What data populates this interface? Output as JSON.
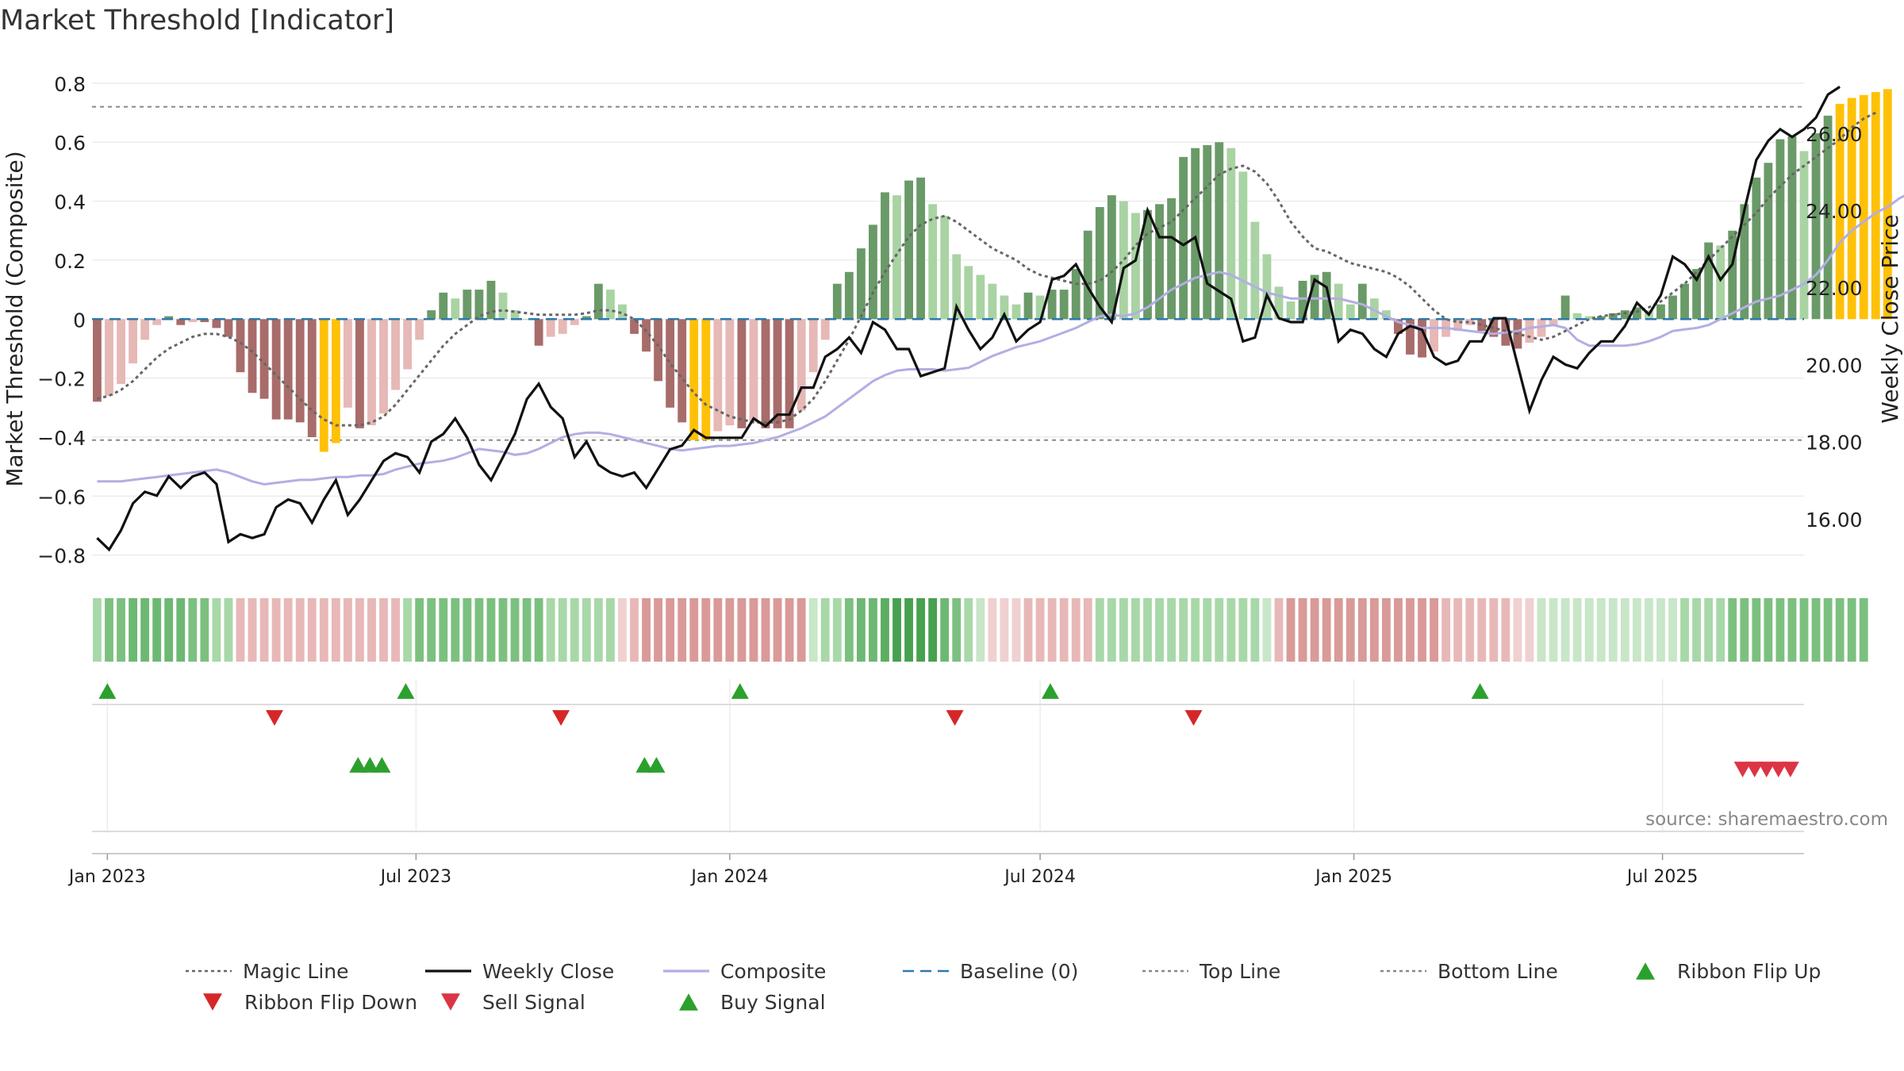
{
  "chart_data": {
    "title": "Market Threshold [Indicator]",
    "type": "bar+line",
    "y_left_label": "Market Threshold (Composite)",
    "y_right_label": "Weekly Close Price",
    "y_left_range": [
      -0.86,
      0.84
    ],
    "y_right_range": [
      14.6,
      27.6
    ],
    "y_left_ticks": [
      "0.8",
      "0.6",
      "0.4",
      "0.2",
      "0",
      "−0.2",
      "−0.4",
      "−0.6",
      "−0.8"
    ],
    "y_left_tick_values": [
      0.8,
      0.6,
      0.4,
      0.2,
      0,
      -0.2,
      -0.4,
      -0.6,
      -0.8
    ],
    "y_right_ticks": [
      "26.00",
      "24.00",
      "22.00",
      "20.00",
      "18.00",
      "16.00"
    ],
    "y_right_tick_values": [
      26,
      24,
      22,
      20,
      18,
      16
    ],
    "x_range": [
      "2022-12-23",
      "2025-09-22"
    ],
    "x_ticks": [
      {
        "label": "Jan 2023",
        "date": "2023-01-01"
      },
      {
        "label": "Jul 2023",
        "date": "2023-07-01"
      },
      {
        "label": "Jan 2024",
        "date": "2024-01-01"
      },
      {
        "label": "Jul 2024",
        "date": "2024-07-01"
      },
      {
        "label": "Jan 2025",
        "date": "2025-01-01"
      },
      {
        "label": "Jul 2025",
        "date": "2025-07-01"
      }
    ],
    "top_line": 0.72,
    "bottom_line": -0.41,
    "baseline": 0,
    "start_date": "2022-12-26",
    "week_step_days": 7,
    "composite_bars": [
      -0.28,
      -0.26,
      -0.22,
      -0.15,
      -0.07,
      -0.02,
      0.01,
      -0.02,
      -0.01,
      -0.01,
      -0.03,
      -0.06,
      -0.18,
      -0.25,
      -0.27,
      -0.34,
      -0.34,
      -0.35,
      -0.4,
      -0.45,
      -0.42,
      -0.3,
      -0.37,
      -0.36,
      -0.32,
      -0.24,
      -0.17,
      -0.07,
      0.03,
      0.09,
      0.07,
      0.1,
      0.1,
      0.13,
      0.09,
      0.03,
      0.0,
      -0.09,
      -0.06,
      -0.05,
      -0.02,
      0.01,
      0.12,
      0.1,
      0.05,
      -0.05,
      -0.11,
      -0.21,
      -0.3,
      -0.35,
      -0.41,
      -0.41,
      -0.38,
      -0.36,
      -0.37,
      -0.35,
      -0.37,
      -0.37,
      -0.37,
      -0.31,
      -0.18,
      -0.07,
      0.12,
      0.16,
      0.24,
      0.32,
      0.43,
      0.42,
      0.47,
      0.48,
      0.39,
      0.35,
      0.22,
      0.18,
      0.15,
      0.12,
      0.08,
      0.05,
      0.09,
      0.08,
      0.1,
      0.1,
      0.17,
      0.3,
      0.38,
      0.42,
      0.4,
      0.36,
      0.37,
      0.39,
      0.41,
      0.55,
      0.58,
      0.59,
      0.6,
      0.58,
      0.5,
      0.33,
      0.22,
      0.11,
      0.06,
      0.13,
      0.15,
      0.16,
      0.12,
      0.05,
      0.12,
      0.07,
      0.03,
      -0.05,
      -0.12,
      -0.13,
      -0.11,
      -0.06,
      -0.04,
      -0.02,
      -0.04,
      -0.06,
      -0.09,
      -0.1,
      -0.08,
      -0.06,
      -0.02,
      0.08,
      0.02,
      0.01,
      0.01,
      0.02,
      0.03,
      0.04,
      0.03,
      0.05,
      0.08,
      0.12,
      0.17,
      0.26,
      0.25,
      0.3,
      0.39,
      0.48,
      0.53,
      0.61,
      0.62,
      0.57,
      0.63,
      0.69,
      0.73,
      0.75,
      0.76,
      0.77,
      0.78
    ],
    "weekly_close": [
      15.5,
      15.2,
      15.7,
      16.4,
      16.7,
      16.6,
      17.1,
      16.8,
      17.1,
      17.2,
      16.9,
      15.4,
      15.6,
      15.5,
      15.6,
      16.3,
      16.5,
      16.4,
      15.9,
      16.5,
      17.0,
      16.1,
      16.5,
      17.0,
      17.5,
      17.7,
      17.6,
      17.2,
      18.0,
      18.2,
      18.6,
      18.1,
      17.4,
      17.0,
      17.6,
      18.2,
      19.1,
      19.5,
      18.9,
      18.6,
      17.6,
      18.0,
      17.4,
      17.2,
      17.1,
      17.2,
      16.8,
      17.3,
      17.8,
      17.9,
      18.3,
      18.1,
      18.1,
      18.1,
      18.1,
      18.6,
      18.4,
      18.7,
      18.7,
      19.4,
      19.4,
      20.2,
      20.4,
      20.7,
      20.3,
      21.1,
      20.9,
      20.4,
      20.4,
      19.7,
      19.8,
      19.9,
      21.5,
      20.9,
      20.4,
      20.7,
      21.3,
      20.6,
      20.9,
      21.1,
      22.2,
      22.3,
      22.6,
      22.0,
      21.5,
      21.1,
      22.5,
      22.7,
      24.0,
      23.3,
      23.3,
      23.1,
      23.3,
      22.1,
      21.9,
      21.7,
      20.6,
      20.7,
      21.8,
      21.2,
      21.1,
      21.1,
      22.2,
      22.0,
      20.6,
      20.9,
      20.8,
      20.4,
      20.2,
      20.8,
      21.0,
      20.9,
      20.2,
      20.0,
      20.1,
      20.6,
      20.6,
      21.2,
      21.2,
      20.0,
      18.8,
      19.6,
      20.2,
      20.0,
      19.9,
      20.3,
      20.6,
      20.6,
      21.0,
      21.6,
      21.3,
      21.8,
      22.8,
      22.6,
      22.2,
      22.8,
      22.2,
      22.6,
      24.0,
      25.3,
      25.8,
      26.1,
      25.9,
      26.1,
      26.4,
      27.0,
      27.2
    ],
    "composite_line": [
      -0.55,
      -0.55,
      -0.55,
      -0.545,
      -0.54,
      -0.535,
      -0.53,
      -0.525,
      -0.52,
      -0.515,
      -0.51,
      -0.52,
      -0.535,
      -0.55,
      -0.56,
      -0.555,
      -0.55,
      -0.545,
      -0.545,
      -0.54,
      -0.535,
      -0.535,
      -0.53,
      -0.53,
      -0.525,
      -0.51,
      -0.5,
      -0.49,
      -0.485,
      -0.48,
      -0.47,
      -0.455,
      -0.44,
      -0.445,
      -0.45,
      -0.46,
      -0.455,
      -0.44,
      -0.42,
      -0.4,
      -0.39,
      -0.385,
      -0.385,
      -0.39,
      -0.4,
      -0.41,
      -0.42,
      -0.43,
      -0.44,
      -0.445,
      -0.44,
      -0.435,
      -0.43,
      -0.43,
      -0.425,
      -0.42,
      -0.41,
      -0.4,
      -0.385,
      -0.37,
      -0.35,
      -0.33,
      -0.3,
      -0.27,
      -0.24,
      -0.21,
      -0.19,
      -0.175,
      -0.17,
      -0.17,
      -0.17,
      -0.175,
      -0.17,
      -0.165,
      -0.145,
      -0.125,
      -0.11,
      -0.095,
      -0.085,
      -0.075,
      -0.06,
      -0.045,
      -0.03,
      -0.01,
      0.01,
      0.015,
      0.01,
      0.02,
      0.04,
      0.07,
      0.1,
      0.12,
      0.14,
      0.15,
      0.16,
      0.15,
      0.13,
      0.11,
      0.09,
      0.08,
      0.07,
      0.07,
      0.07,
      0.07,
      0.07,
      0.06,
      0.05,
      0.03,
      0.01,
      -0.01,
      -0.02,
      -0.03,
      -0.03,
      -0.03,
      -0.035,
      -0.04,
      -0.045,
      -0.05,
      -0.045,
      -0.04,
      -0.03,
      -0.025,
      -0.02,
      -0.03,
      -0.07,
      -0.09,
      -0.09,
      -0.09,
      -0.09,
      -0.085,
      -0.075,
      -0.06,
      -0.04,
      -0.035,
      -0.03,
      -0.02,
      0.0,
      0.02,
      0.04,
      0.06,
      0.07,
      0.08,
      0.1,
      0.12,
      0.15,
      0.2,
      0.26,
      0.3,
      0.33,
      0.36,
      0.38,
      0.41,
      0.43
    ],
    "magic_line": [
      -0.27,
      -0.26,
      -0.24,
      -0.21,
      -0.17,
      -0.13,
      -0.1,
      -0.08,
      -0.06,
      -0.05,
      -0.05,
      -0.06,
      -0.08,
      -0.11,
      -0.15,
      -0.19,
      -0.23,
      -0.27,
      -0.31,
      -0.34,
      -0.36,
      -0.36,
      -0.36,
      -0.35,
      -0.33,
      -0.29,
      -0.24,
      -0.19,
      -0.14,
      -0.09,
      -0.05,
      -0.02,
      0.01,
      0.025,
      0.03,
      0.025,
      0.02,
      0.015,
      0.015,
      0.015,
      0.015,
      0.02,
      0.03,
      0.03,
      0.02,
      0.0,
      -0.04,
      -0.09,
      -0.15,
      -0.2,
      -0.25,
      -0.29,
      -0.31,
      -0.33,
      -0.34,
      -0.35,
      -0.35,
      -0.35,
      -0.34,
      -0.31,
      -0.27,
      -0.21,
      -0.14,
      -0.07,
      0.01,
      0.09,
      0.16,
      0.22,
      0.28,
      0.32,
      0.34,
      0.35,
      0.33,
      0.3,
      0.27,
      0.24,
      0.22,
      0.2,
      0.17,
      0.15,
      0.14,
      0.13,
      0.12,
      0.12,
      0.13,
      0.16,
      0.2,
      0.25,
      0.29,
      0.31,
      0.33,
      0.37,
      0.41,
      0.45,
      0.49,
      0.51,
      0.52,
      0.5,
      0.46,
      0.4,
      0.33,
      0.28,
      0.24,
      0.23,
      0.21,
      0.19,
      0.18,
      0.17,
      0.16,
      0.14,
      0.11,
      0.07,
      0.03,
      0.0,
      -0.01,
      -0.01,
      -0.02,
      -0.03,
      -0.04,
      -0.05,
      -0.06,
      -0.07,
      -0.06,
      -0.04,
      -0.02,
      0.0,
      0.01,
      0.015,
      0.02,
      0.025,
      0.04,
      0.06,
      0.09,
      0.12,
      0.16,
      0.2,
      0.24,
      0.28,
      0.32,
      0.36,
      0.41,
      0.45,
      0.49,
      0.52,
      0.55,
      0.58,
      0.61,
      0.65,
      0.68,
      0.7
    ],
    "bar_colors": {
      "pos_strong": "#6a9a68",
      "pos_weak": "#a9d3a3",
      "neg_strong": "#a86c6a",
      "neg_weak": "#e6b8b6",
      "extreme": "#ffc107"
    },
    "ribbon_colors": [
      "#a8d8a8",
      "#7cc07f",
      "#7cc07f",
      "#6db872",
      "#6db872",
      "#6db872",
      "#6db872",
      "#6db872",
      "#7cc07f",
      "#7cc07f",
      "#a8d8a8",
      "#a8d8a8",
      "#e8b8b8",
      "#e8b8b8",
      "#e8b8b8",
      "#e8b8b8",
      "#e8b8b8",
      "#e8b8b8",
      "#e8b8b8",
      "#e8b8b8",
      "#e8b8b8",
      "#e8b8b8",
      "#e8b8b8",
      "#e8b8b8",
      "#e8b8b8",
      "#e8b8b8",
      "#a8d8a8",
      "#7cc07f",
      "#7cc07f",
      "#7cc07f",
      "#7cc07f",
      "#7cc07f",
      "#7cc07f",
      "#7cc07f",
      "#7cc07f",
      "#7cc07f",
      "#7cc07f",
      "#7cc07f",
      "#a8d8a8",
      "#a8d8a8",
      "#a8d8a8",
      "#a8d8a8",
      "#a8d8a8",
      "#a8d8a8",
      "#f0d0d0",
      "#e8b8b8",
      "#d99a98",
      "#d99a98",
      "#d99a98",
      "#d99a98",
      "#d99a98",
      "#d99a98",
      "#d99a98",
      "#d99a98",
      "#d99a98",
      "#d99a98",
      "#d99a98",
      "#d99a98",
      "#d99a98",
      "#d99a98",
      "#c8e6c8",
      "#a8d8a8",
      "#a8d8a8",
      "#7cc07f",
      "#6db872",
      "#6db872",
      "#5cae61",
      "#47a14f",
      "#47a14f",
      "#47a14f",
      "#47a14f",
      "#6db872",
      "#7cc07f",
      "#a8d8a8",
      "#c8e6c8",
      "#f0d0d0",
      "#f0d0d0",
      "#f0d0d0",
      "#e8b8b8",
      "#e8b8b8",
      "#e8b8b8",
      "#e8b8b8",
      "#e8b8b8",
      "#e8b8b8",
      "#a8d8a8",
      "#a8d8a8",
      "#a8d8a8",
      "#a8d8a8",
      "#a8d8a8",
      "#a8d8a8",
      "#a8d8a8",
      "#a8d8a8",
      "#a8d8a8",
      "#a8d8a8",
      "#a8d8a8",
      "#a8d8a8",
      "#a8d8a8",
      "#a8d8a8",
      "#c8e6c8",
      "#e8b8b8",
      "#d99a98",
      "#d99a98",
      "#d99a98",
      "#d99a98",
      "#d99a98",
      "#d99a98",
      "#d99a98",
      "#d99a98",
      "#d99a98",
      "#d99a98",
      "#d99a98",
      "#d99a98",
      "#d99a98",
      "#e8b8b8",
      "#e8b8b8",
      "#e8b8b8",
      "#e8b8b8",
      "#e8b8b8",
      "#e8b8b8",
      "#f0d0d0",
      "#f0d0d0",
      "#c8e6c8",
      "#c8e6c8",
      "#c8e6c8",
      "#c8e6c8",
      "#c8e6c8",
      "#c8e6c8",
      "#c8e6c8",
      "#c8e6c8",
      "#c8e6c8",
      "#c8e6c8",
      "#c8e6c8",
      "#c8e6c8",
      "#a8d8a8",
      "#a8d8a8",
      "#a8d8a8",
      "#a8d8a8",
      "#7cc07f",
      "#7cc07f",
      "#7cc07f",
      "#7cc07f",
      "#7cc07f",
      "#7cc07f",
      "#7cc07f",
      "#7cc07f",
      "#7cc07f",
      "#7cc07f",
      "#7cc07f",
      "#7cc07f"
    ],
    "ribbon_flip_up": [
      "2023-01-01",
      "2023-06-25",
      "2024-01-07",
      "2024-07-07",
      "2025-03-16"
    ],
    "ribbon_flip_down": [
      "2023-04-09",
      "2023-09-24",
      "2024-05-12",
      "2024-09-29"
    ],
    "buy_signal": [
      "2023-05-28",
      "2023-06-04",
      "2023-06-11",
      "2023-11-12",
      "2023-11-19"
    ],
    "sell_signal": [
      "2025-08-17",
      "2025-08-24",
      "2025-08-31",
      "2025-09-07",
      "2025-09-14"
    ],
    "colors": {
      "weekly_close": "#111111",
      "composite": "#b3aee3",
      "magic": "#666666",
      "baseline": "#2c7ab0",
      "threshold": "#888888",
      "flip_up": "#2ca02c",
      "flip_down": "#d62728",
      "buy": "#2ca02c",
      "sell": "#dc3545"
    },
    "source": "source: sharemaestro.com",
    "legend": [
      {
        "label": "Magic Line",
        "icon": "dotted-line"
      },
      {
        "label": "Weekly Close",
        "icon": "solid-line"
      },
      {
        "label": "Composite",
        "icon": "solid-line"
      },
      {
        "label": "Baseline (0)",
        "icon": "dashed-line"
      },
      {
        "label": "Top Line",
        "icon": "dotted-line"
      },
      {
        "label": "Bottom Line",
        "icon": "dotted-line"
      },
      {
        "label": "Ribbon Flip Up",
        "icon": "triangle-up"
      },
      {
        "label": "Ribbon Flip Down",
        "icon": "triangle-down"
      },
      {
        "label": "Sell Signal",
        "icon": "triangle-down"
      },
      {
        "label": "Buy Signal",
        "icon": "triangle-up"
      }
    ]
  }
}
